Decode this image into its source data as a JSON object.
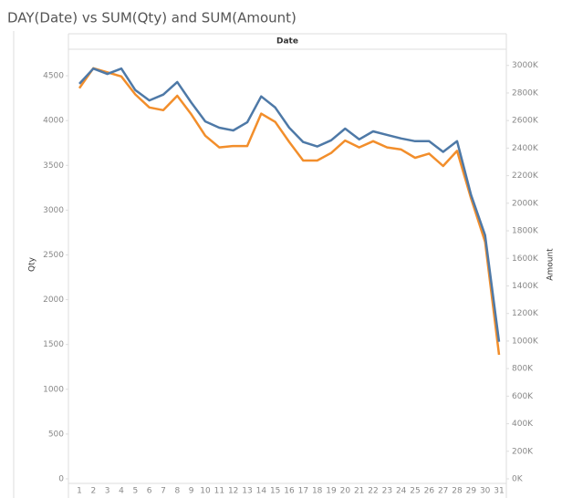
{
  "chart_data": {
    "type": "line",
    "title": "DAY(Date) vs SUM(Qty) and SUM(Amount)",
    "x_label": "Date",
    "categories": [
      "1",
      "2",
      "3",
      "4",
      "5",
      "6",
      "7",
      "8",
      "9",
      "10",
      "11",
      "12",
      "13",
      "14",
      "15",
      "16",
      "17",
      "18",
      "19",
      "20",
      "21",
      "22",
      "23",
      "24",
      "25",
      "26",
      "27",
      "28",
      "29",
      "30",
      "31"
    ],
    "series": [
      {
        "name": "Qty",
        "color": "#4e79a7",
        "axis": "y",
        "values": [
          4410,
          4580,
          4520,
          4580,
          4340,
          4225,
          4290,
          4430,
          4200,
          3990,
          3920,
          3890,
          3980,
          4270,
          4145,
          3920,
          3760,
          3710,
          3780,
          3910,
          3790,
          3880,
          3840,
          3800,
          3770,
          3770,
          3650,
          3770,
          3170,
          2720,
          1530
        ]
      },
      {
        "name": "Amount",
        "color": "#f28e2b",
        "axis": "y2",
        "values": [
          2835000,
          2980000,
          2950000,
          2920000,
          2790000,
          2695000,
          2675000,
          2780000,
          2645000,
          2490000,
          2405000,
          2415000,
          2415000,
          2650000,
          2590000,
          2445000,
          2310000,
          2310000,
          2365000,
          2455000,
          2405000,
          2450000,
          2405000,
          2390000,
          2330000,
          2360000,
          2270000,
          2380000,
          2035000,
          1720000,
          900000
        ]
      }
    ],
    "ylim": [
      0,
      4800
    ],
    "yticks": [
      0,
      500,
      1000,
      1500,
      2000,
      2500,
      3000,
      3500,
      4000,
      4500
    ],
    "y2lim": [
      0,
      3120000
    ],
    "y2ticks": [
      {
        "value": 0,
        "label": "0K"
      },
      {
        "value": 200000,
        "label": "200K"
      },
      {
        "value": 400000,
        "label": "400K"
      },
      {
        "value": 600000,
        "label": "600K"
      },
      {
        "value": 800000,
        "label": "800K"
      },
      {
        "value": 1000000,
        "label": "1000K"
      },
      {
        "value": 1200000,
        "label": "1200K"
      },
      {
        "value": 1400000,
        "label": "1400K"
      },
      {
        "value": 1600000,
        "label": "1600K"
      },
      {
        "value": 1800000,
        "label": "1800K"
      },
      {
        "value": 2000000,
        "label": "2000K"
      },
      {
        "value": 2200000,
        "label": "2200K"
      },
      {
        "value": 2400000,
        "label": "2400K"
      },
      {
        "value": 2600000,
        "label": "2600K"
      },
      {
        "value": 2800000,
        "label": "2800K"
      },
      {
        "value": 3000000,
        "label": "3000K"
      }
    ]
  }
}
